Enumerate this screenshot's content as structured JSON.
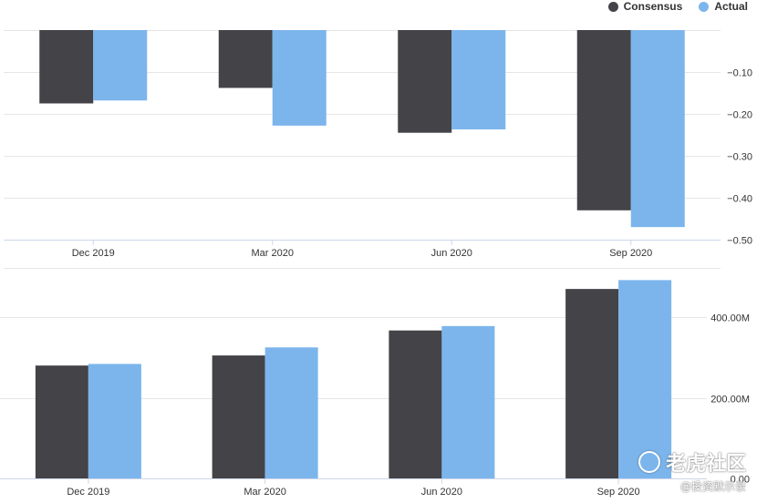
{
  "legend": {
    "items": [
      {
        "label": "Consensus",
        "color": "#434348"
      },
      {
        "label": "Actual",
        "color": "#7cb5ec"
      }
    ]
  },
  "watermark": {
    "brand": "老虎社区",
    "handle": "@投资默示录"
  },
  "chart_data": [
    {
      "type": "bar",
      "categories": [
        "Dec 2019",
        "Mar 2020",
        "Jun 2020",
        "Sep 2020"
      ],
      "series": [
        {
          "name": "Consensus",
          "values": [
            -0.175,
            -0.138,
            -0.245,
            -0.43
          ],
          "color": "#434348"
        },
        {
          "name": "Actual",
          "values": [
            -0.168,
            -0.228,
            -0.237,
            -0.47
          ],
          "color": "#7cb5ec"
        }
      ],
      "ylim": [
        -0.5,
        0
      ],
      "yticks": [
        -0.1,
        -0.2,
        -0.3,
        -0.4,
        -0.5
      ],
      "ytick_labels": [
        "−0.10",
        "−0.20",
        "−0.30",
        "−0.40",
        "−0.50"
      ],
      "grid": true,
      "legend_position": "top-right"
    },
    {
      "type": "bar",
      "categories": [
        "Dec 2019",
        "Mar 2020",
        "Jun 2020",
        "Sep 2020"
      ],
      "series": [
        {
          "name": "Consensus",
          "values": [
            280,
            305,
            367,
            470
          ],
          "color": "#434348"
        },
        {
          "name": "Actual",
          "values": [
            284,
            325,
            378,
            492
          ],
          "color": "#7cb5ec"
        }
      ],
      "ylim": [
        0,
        520
      ],
      "yticks": [
        0,
        200,
        400
      ],
      "ytick_labels": [
        "0.00",
        "200.00M",
        "400.00M"
      ],
      "grid": true
    }
  ]
}
